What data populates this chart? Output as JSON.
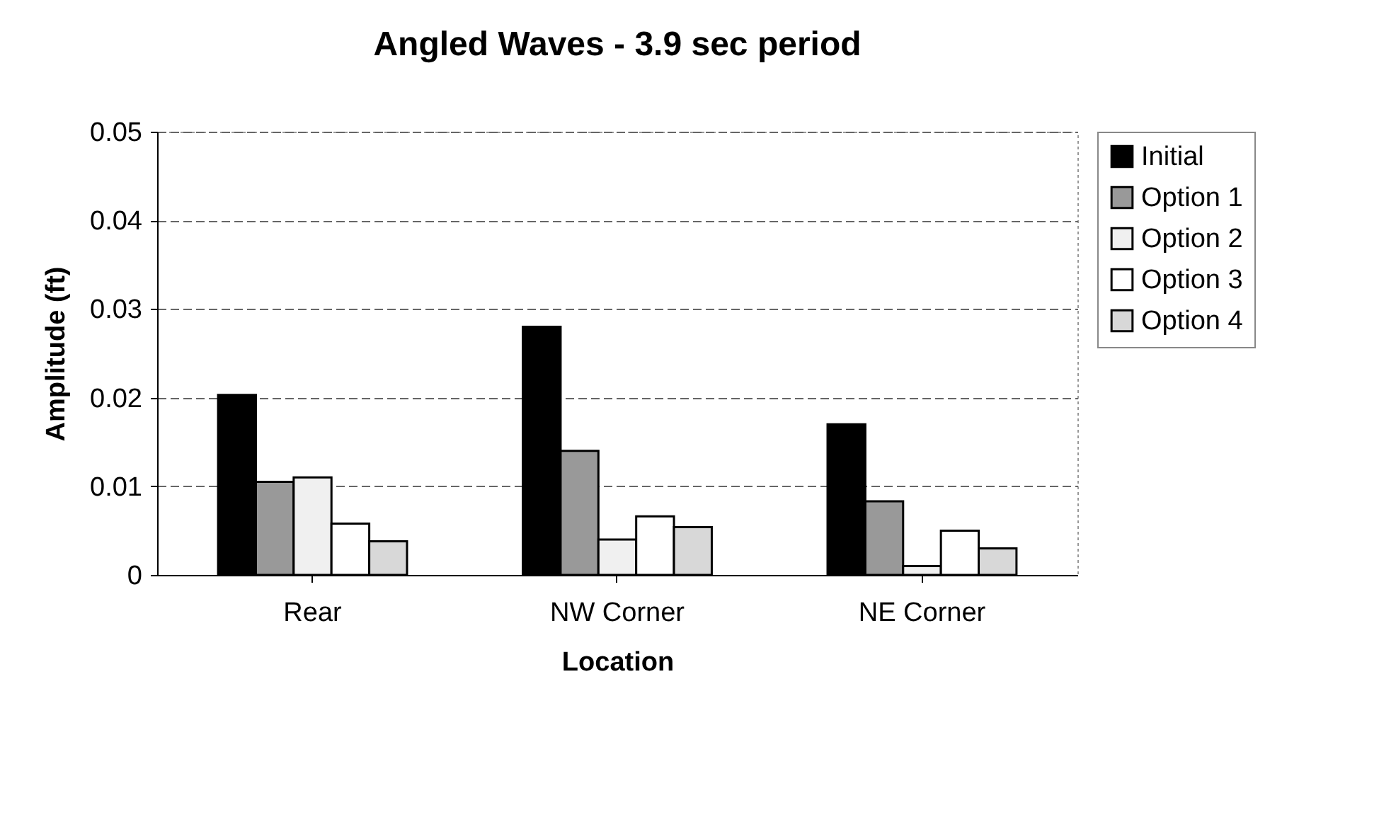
{
  "chart_data": {
    "type": "bar",
    "title": "Angled Waves - 3.9 sec period",
    "xlabel": "Location",
    "ylabel": "Amplitude (ft)",
    "categories": [
      "Rear",
      "NW Corner",
      "NE Corner"
    ],
    "series": [
      {
        "name": "Initial",
        "color": "#000000",
        "values": [
          0.0203,
          0.028,
          0.017
        ]
      },
      {
        "name": "Option 1",
        "color": "#999999",
        "values": [
          0.0105,
          0.014,
          0.0083
        ]
      },
      {
        "name": "Option 2",
        "color": "#f0f0f0",
        "values": [
          0.011,
          0.004,
          0.001
        ]
      },
      {
        "name": "Option 3",
        "color": "#ffffff",
        "values": [
          0.0058,
          0.0066,
          0.005
        ]
      },
      {
        "name": "Option 4",
        "color": "#d8d8d8",
        "values": [
          0.0038,
          0.0054,
          0.003
        ]
      }
    ],
    "ylim": [
      0,
      0.05
    ],
    "yticks": [
      0,
      0.01,
      0.02,
      0.03,
      0.04,
      0.05
    ],
    "grid": "y",
    "legend": "right"
  }
}
